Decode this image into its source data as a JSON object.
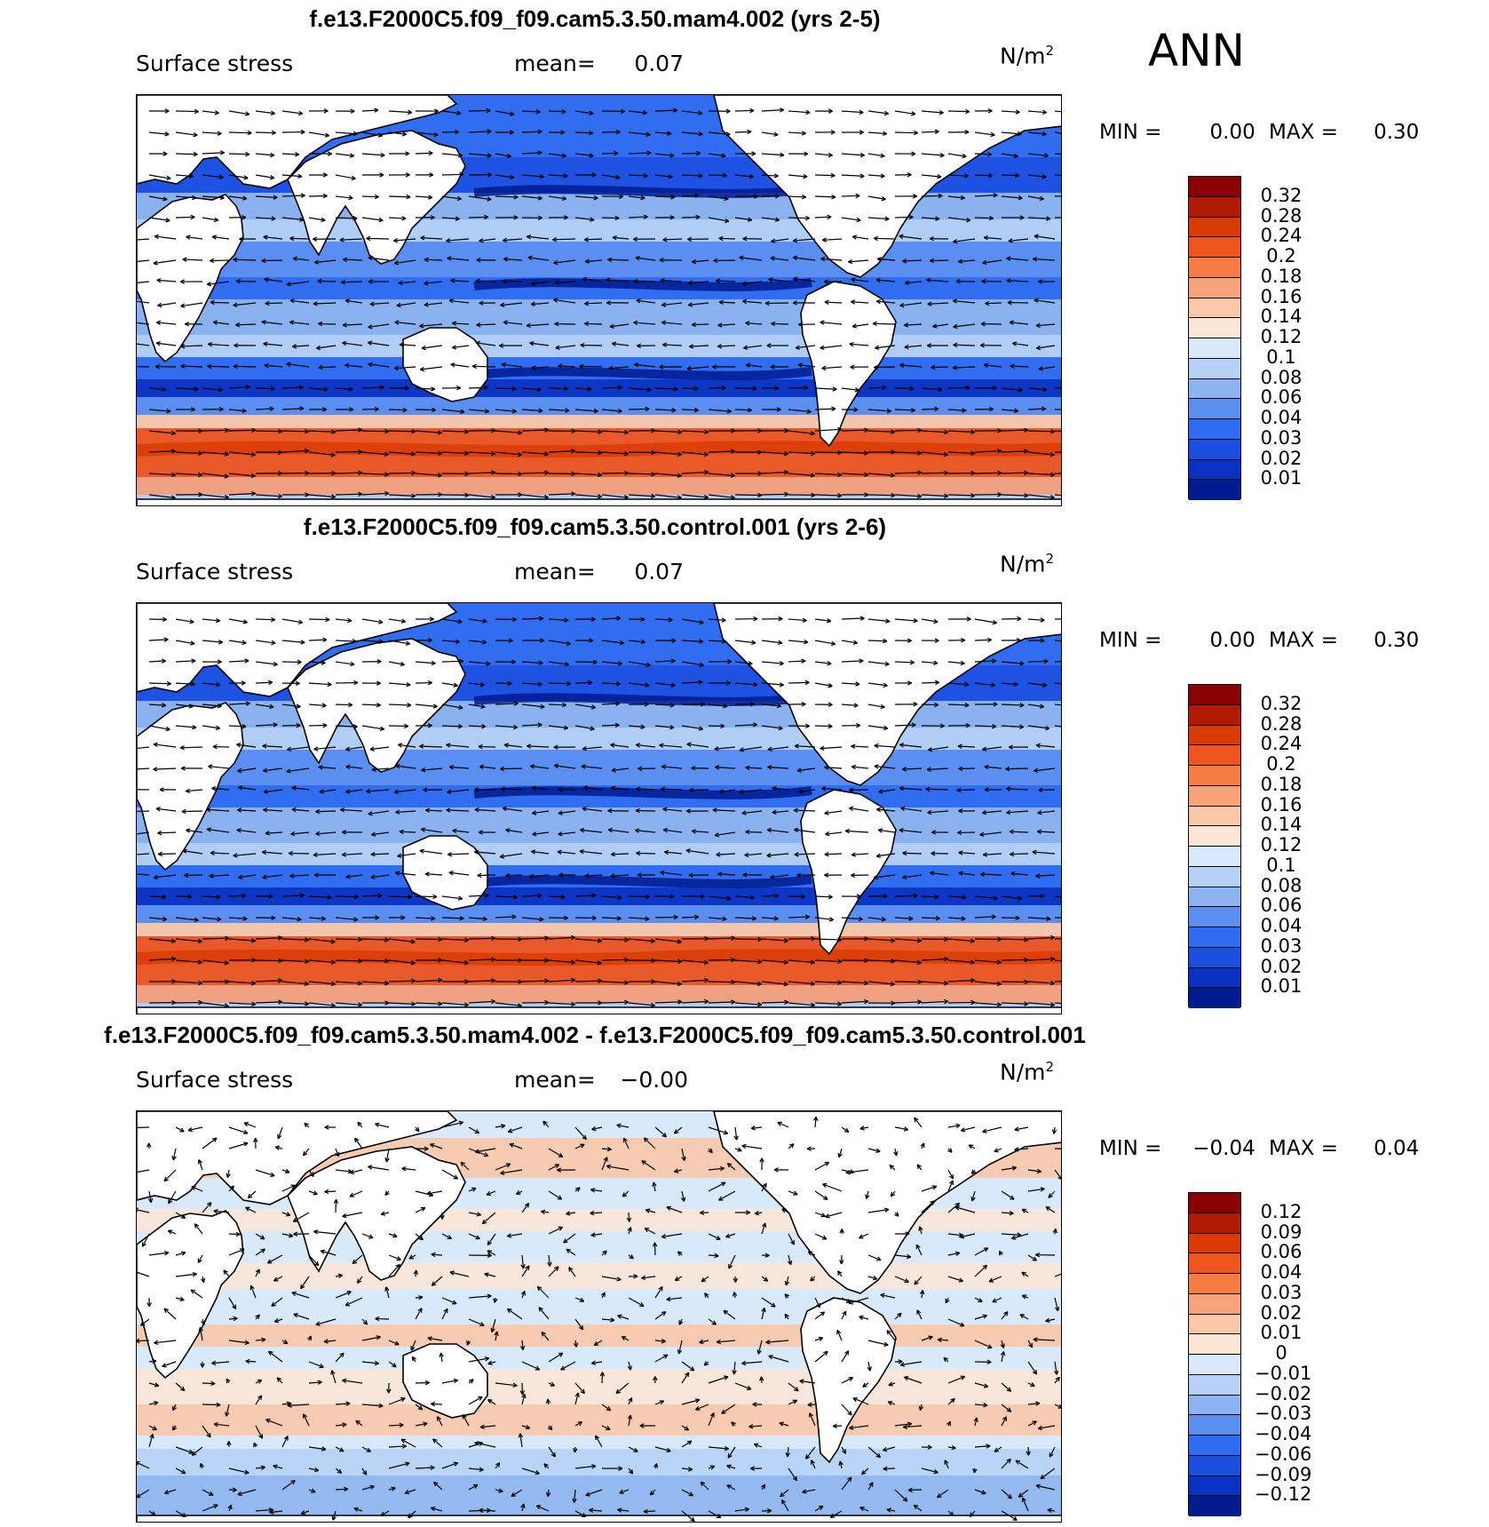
{
  "season_label": "ANN",
  "units_text": "N/m",
  "units_power": "2",
  "field_label": "Surface stress",
  "mean_label": "mean=",
  "min_label": "MIN =",
  "max_label": "MAX =",
  "colors": {
    "abs_scale": [
      "#8b0000",
      "#b01a00",
      "#d93a00",
      "#f0551e",
      "#f57c45",
      "#f8a27a",
      "#fbc8a8",
      "#fde6d6",
      "#d8e9fb",
      "#b5d1f5",
      "#8db4f0",
      "#5b8ff0",
      "#2e6bf0",
      "#1a4fe0",
      "#0a32c2",
      "#001a8f"
    ],
    "diff_scale": [
      "#8b0000",
      "#b01a00",
      "#d93a00",
      "#f0551e",
      "#f57c45",
      "#f8a27a",
      "#fbc8a8",
      "#fde6d6",
      "#d8e9fb",
      "#b5d1f5",
      "#8db4f0",
      "#5b8ff0",
      "#2e6bf0",
      "#1a4fe0",
      "#0a32c2",
      "#001a8f"
    ],
    "land": "#ffffff"
  },
  "panels": [
    {
      "title": "f.e13.F2000C5.f09_f09.cam5.3.50.mam4.002 (yrs 2-5)",
      "mean_value": "0.07",
      "min_value": "0.00",
      "max_value": "0.30",
      "kind": "absolute",
      "colorbar_ticks": [
        "0.32",
        "0.28",
        "0.24",
        "0.2",
        "0.18",
        "0.16",
        "0.14",
        "0.12",
        "0.1",
        "0.08",
        "0.06",
        "0.04",
        "0.03",
        "0.02",
        "0.01"
      ]
    },
    {
      "title": "f.e13.F2000C5.f09_f09.cam5.3.50.control.001 (yrs 2-6)",
      "mean_value": "0.07",
      "min_value": "0.00",
      "max_value": "0.30",
      "kind": "absolute",
      "colorbar_ticks": [
        "0.32",
        "0.28",
        "0.24",
        "0.2",
        "0.18",
        "0.16",
        "0.14",
        "0.12",
        "0.1",
        "0.08",
        "0.06",
        "0.04",
        "0.03",
        "0.02",
        "0.01"
      ]
    },
    {
      "title": "f.e13.F2000C5.f09_f09.cam5.3.50.mam4.002 - f.e13.F2000C5.f09_f09.cam5.3.50.control.001",
      "mean_value": "−0.00",
      "min_value": "−0.04",
      "max_value": "0.04",
      "kind": "difference",
      "colorbar_ticks": [
        "0.12",
        "0.09",
        "0.06",
        "0.04",
        "0.03",
        "0.02",
        "0.01",
        "0",
        "−0.01",
        "−0.02",
        "−0.03",
        "−0.04",
        "−0.06",
        "−0.09",
        "−0.12"
      ]
    }
  ]
}
